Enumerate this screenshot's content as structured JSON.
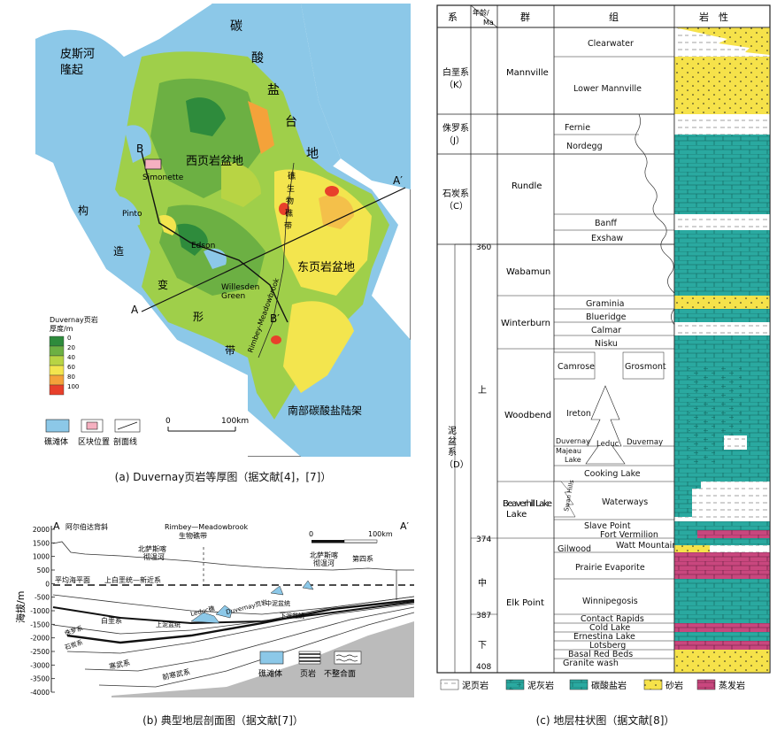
{
  "panel_a": {
    "caption": "(a) Duvernay页岩等厚图（据文献[4]，[7]）",
    "regions": {
      "peace_river": [
        "皮斯河",
        "隆起"
      ],
      "carbonate_platform": [
        "碳",
        "酸",
        "盐",
        "台",
        "地"
      ],
      "west_basin": "西页岩盆地",
      "east_basin": "东页岩盆地",
      "south_shelf": "南部碳酸盐陆架",
      "tectonic_belt": [
        "构",
        "造",
        "变",
        "形",
        "带"
      ],
      "reef_chain": "Rimbey-Meadowbrook",
      "reef_word": [
        "礁",
        "生",
        "物",
        "礁",
        "带"
      ]
    },
    "places": {
      "simonette": "Simonette",
      "pinto": "Pinto",
      "edson": "Edson",
      "willesden1": "Willesden",
      "willesden2": "Green"
    },
    "section_labels": {
      "a": "A",
      "a_prime": "A′",
      "b": "B",
      "b_prime": "B′"
    },
    "legend": {
      "title1": "Duvernay页岩",
      "title2": "厚度/m",
      "ticks": [
        "0",
        "20",
        "40",
        "60",
        "80",
        "100"
      ],
      "colors": [
        "#2e8b3c",
        "#6cb043",
        "#b8d444",
        "#f3e54e",
        "#f4a23a",
        "#e8402b"
      ]
    },
    "key": {
      "reef": "礁滩体",
      "block": "区块位置",
      "line": "剖面线"
    },
    "scale": {
      "zero": "0",
      "label": "100km"
    }
  },
  "panel_b": {
    "caption": "(b) 典型地层剖面图（据文献[7]）",
    "ylabel": "海拔/m",
    "yticks": [
      "2000",
      "1500",
      "1000",
      "500",
      "0",
      "-500",
      "-1000",
      "-1500",
      "-2000",
      "-2500",
      "-3000",
      "-3500",
      "-4000"
    ],
    "end_a": "A",
    "end_a_prime": "A′",
    "labels": {
      "alberta_syncline": "阿尔伯达背斜",
      "rimbey1": "Rimbey—Meadowbrook",
      "rimbey2": "生物礁带",
      "nsr_west1": "北萨斯喀",
      "nsr_west2": "彻温河",
      "nsr_east1": "北萨斯喀",
      "nsr_east2": "彻温河",
      "quaternary": "第四系",
      "sea_level": "平均海平面",
      "upper_cret": "上白垩统—新近系",
      "cretaceous": "白垩系",
      "upper_devonian": "上泥盆统",
      "lower_devonian": "下泥盆统",
      "jurassic": "侏罗系",
      "carboniferous": "石炭系",
      "duvernay": "Duvernay页岩",
      "leduc": "Leduc礁",
      "middle_dev": "中泥盆统",
      "cambrian": "寒武系",
      "precambrian": "前寒武系"
    },
    "scale": {
      "zero": "0",
      "label": "100km"
    },
    "key": {
      "reef": "礁滩体",
      "shale": "页岩",
      "unconformity": "不整合面"
    }
  },
  "panel_c": {
    "caption": "(c) 地层柱状图（据文献[8]）",
    "headers": {
      "system": "系",
      "age1": "年龄/",
      "age2": "Ma",
      "group": "群",
      "formation": "组",
      "lithology": "岩　性"
    },
    "systems": {
      "k1": "白垩系",
      "k2": "（K）",
      "j1": "侏罗系",
      "j2": "（J）",
      "c1": "石炭系",
      "c2": "（C）",
      "d1": "泥",
      "d2": "盆",
      "d3": "系",
      "d4": "（D）"
    },
    "series": {
      "upper": "上",
      "middle": "中",
      "lower": "下"
    },
    "ages": [
      "360",
      "374",
      "387",
      "408"
    ],
    "groups": {
      "mannville": "Mannville",
      "rundle": "Rundle",
      "wabamun": "Wabamun",
      "winterburn": "Winterburn",
      "woodbend": "Woodbend",
      "beaverhill": "Beaverhill Lake",
      "elkpoint": "Elk Point"
    },
    "formations": {
      "clearwater": "Clearwater",
      "lower_mannville": "Lower Mannville",
      "fernie": "Fernie",
      "nordegg": "Nordegg",
      "banff": "Banff",
      "exshaw": "Exshaw",
      "graminia": "Graminia",
      "blueridge": "Blueridge",
      "calmar": "Calmar",
      "nisku": "Nisku",
      "camrose": "Camrose",
      "grosmont": "Grosmont",
      "ireton": "Ireton",
      "duvernay": "Duvernay",
      "majeau1": "Majeau",
      "majeau2": "Lake",
      "leduc": "Leduc",
      "duvernay2": "Duvernay",
      "cooking_lake": "Cooking Lake",
      "swan_hills": "Swan Hills",
      "waterways": "Waterways",
      "slave_point": "Slave Point",
      "fort_vermilion": "Fort Vermilion",
      "gilwood": "Gilwood",
      "watt_mountain": "Watt Mountain",
      "prairie_evaporite": "Prairie Evaporite",
      "winnipegosis": "Winnipegosis",
      "contact_rapids": "Contact Rapids",
      "cold_lake": "Cold Lake",
      "ernestina_lake": "Ernestina Lake",
      "lotsberg": "Lotsberg",
      "basal_red_beds": "Basal Red Beds",
      "granite_wash": "Granite wash"
    },
    "legend": {
      "mudstone": "泥页岩",
      "marl": "泥灰岩",
      "carbonate": "碳酸盐岩",
      "sandstone": "砂岩",
      "evaporite": "蒸发岩"
    },
    "colors": {
      "carbonate": "#2aa9a0",
      "sandstone": "#f6e24a",
      "evaporite": "#c9477e"
    }
  }
}
